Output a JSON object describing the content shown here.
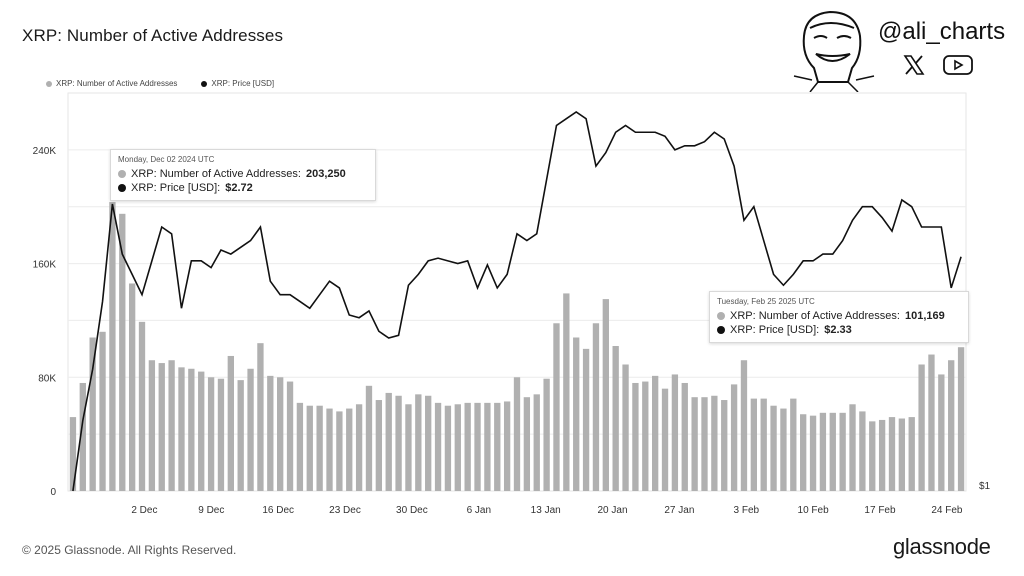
{
  "title": "XRP: Number of Active Addresses",
  "legend": [
    {
      "label": "XRP: Number of Active Addresses",
      "color": "#b0b0b0"
    },
    {
      "label": "XRP: Price [USD]",
      "color": "#111111"
    }
  ],
  "branding": {
    "handle": "@ali_charts",
    "social_icons": [
      "x-logo-icon",
      "youtube-icon"
    ],
    "footer": "© 2025 Glassnode. All Rights Reserved.",
    "logo_text": "glassnode"
  },
  "tooltips": [
    {
      "date": "Monday, Dec 02 2024 UTC",
      "row1_label": "XRP: Number of Active Addresses:",
      "row1_value": "203,250",
      "row2_label": "XRP: Price [USD]:",
      "row2_value": "$2.72"
    },
    {
      "date": "Tuesday, Feb 25 2025 UTC",
      "row1_label": "XRP: Number of Active Addresses:",
      "row1_value": "101,169",
      "row2_label": "XRP: Price [USD]:",
      "row2_value": "$2.33"
    }
  ],
  "chart_data": {
    "type": "bar",
    "title": "XRP: Number of Active Addresses",
    "grid": true,
    "legend_position": "top-left",
    "y_left": {
      "ticks": [
        "0",
        "80K",
        "160K",
        "240K"
      ],
      "tick_values": [
        0,
        80000,
        160000,
        240000
      ],
      "range": [
        0,
        280000
      ]
    },
    "y_right": {
      "ticks": [
        "$1"
      ]
    },
    "x_ticks": [
      "2 Dec",
      "9 Dec",
      "16 Dec",
      "23 Dec",
      "30 Dec",
      "6 Jan",
      "13 Jan",
      "20 Jan",
      "27 Jan",
      "3 Feb",
      "10 Feb",
      "17 Feb",
      "24 Feb"
    ],
    "x_start": "2024-11-24",
    "x_end": "2025-02-26",
    "series": [
      {
        "name": "XRP: Number of Active Addresses",
        "kind": "bar",
        "color": "#b0b0b0",
        "values": [
          52000,
          76000,
          108000,
          112000,
          203250,
          195000,
          146000,
          119000,
          92000,
          90000,
          92000,
          87000,
          86000,
          84000,
          80000,
          79000,
          95000,
          78000,
          86000,
          104000,
          81000,
          80000,
          77000,
          62000,
          60000,
          60000,
          58000,
          56000,
          58000,
          61000,
          74000,
          64000,
          69000,
          67000,
          61000,
          68000,
          67000,
          62000,
          60000,
          61000,
          62000,
          62000,
          62000,
          62000,
          63000,
          80000,
          66000,
          68000,
          79000,
          118000,
          139000,
          108000,
          100000,
          118000,
          135000,
          102000,
          89000,
          76000,
          77000,
          81000,
          72000,
          82000,
          76000,
          66000,
          66000,
          67000,
          64000,
          75000,
          92000,
          65000,
          65000,
          60000,
          58000,
          65000,
          54000,
          53000,
          55000,
          55000,
          55000,
          61000,
          56000,
          49000,
          50000,
          52000,
          51000,
          52000,
          89000,
          96000,
          82000,
          92000,
          101169
        ]
      },
      {
        "name": "XRP: Price [USD]",
        "kind": "line",
        "color": "#111111",
        "values": [
          0.6,
          1.12,
          1.5,
          2.0,
          2.72,
          2.35,
          2.2,
          2.05,
          2.3,
          2.55,
          2.5,
          1.95,
          2.3,
          2.3,
          2.25,
          2.38,
          2.35,
          2.4,
          2.45,
          2.55,
          2.15,
          2.05,
          2.05,
          2.0,
          1.95,
          2.05,
          2.15,
          2.1,
          1.9,
          1.88,
          1.93,
          1.78,
          1.73,
          1.75,
          2.12,
          2.2,
          2.3,
          2.32,
          2.3,
          2.28,
          2.3,
          2.1,
          2.27,
          2.1,
          2.2,
          2.5,
          2.45,
          2.5,
          2.9,
          3.3,
          3.35,
          3.4,
          3.35,
          3.0,
          3.1,
          3.25,
          3.3,
          3.25,
          3.25,
          3.25,
          3.22,
          3.12,
          3.15,
          3.15,
          3.18,
          3.25,
          3.2,
          3.0,
          2.6,
          2.7,
          2.45,
          2.2,
          2.12,
          2.2,
          2.3,
          2.3,
          2.35,
          2.35,
          2.45,
          2.6,
          2.7,
          2.7,
          2.62,
          2.52,
          2.75,
          2.7,
          2.55,
          2.55,
          2.55,
          2.1,
          2.33
        ]
      }
    ]
  }
}
